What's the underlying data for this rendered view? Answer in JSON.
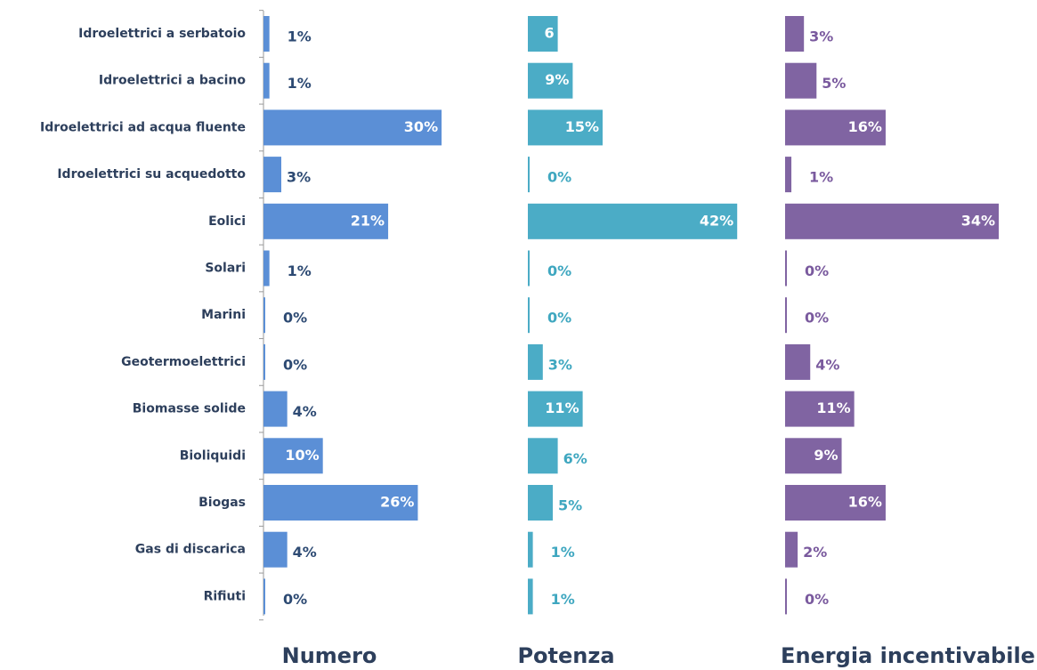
{
  "chart_data": {
    "type": "bar",
    "categories": [
      "Idroelettrici a serbatoio",
      "Idroelettrici a bacino",
      "Idroelettrici ad acqua fluente",
      "Idroelettrici su acquedotto",
      "Eolici",
      "Solari",
      "Marini",
      "Geotermoelettrici",
      "Biomasse solide",
      "Bioliquidi",
      "Biogas",
      "Gas di discarica",
      "Rifiuti"
    ],
    "series": [
      {
        "name": "Numero",
        "color": "#5b8fd6",
        "label_color": "#2d4a73",
        "values": [
          1,
          1,
          30,
          3,
          21,
          1,
          0,
          0,
          4,
          10,
          26,
          4,
          0
        ],
        "value_labels": [
          "1%",
          "1%",
          "30%",
          "3%",
          "21%",
          "1%",
          "0%",
          "0%",
          "4%",
          "10%",
          "26%",
          "4%",
          "0%"
        ]
      },
      {
        "name": "Potenza",
        "color": "#4bacc6",
        "label_color": "#3fa7c0",
        "values": [
          6,
          9,
          15,
          0,
          42,
          0,
          0,
          3,
          11,
          6,
          5,
          1,
          1
        ],
        "value_labels": [
          "6",
          "9%",
          "15%",
          "0%",
          "42%",
          "0%",
          "0%",
          "3%",
          "11%",
          "6%",
          "5%",
          "1%",
          "1%"
        ]
      },
      {
        "name": "Energia incentivabile",
        "color": "#8064a2",
        "label_color": "#7a5a9e",
        "values": [
          3,
          5,
          16,
          1,
          34,
          0,
          0,
          4,
          11,
          9,
          16,
          2,
          0
        ],
        "value_labels": [
          "3%",
          "5%",
          "16%",
          "1%",
          "34%",
          "0%",
          "0%",
          "4%",
          "11%",
          "9%",
          "16%",
          "2%",
          "0%"
        ]
      }
    ]
  }
}
